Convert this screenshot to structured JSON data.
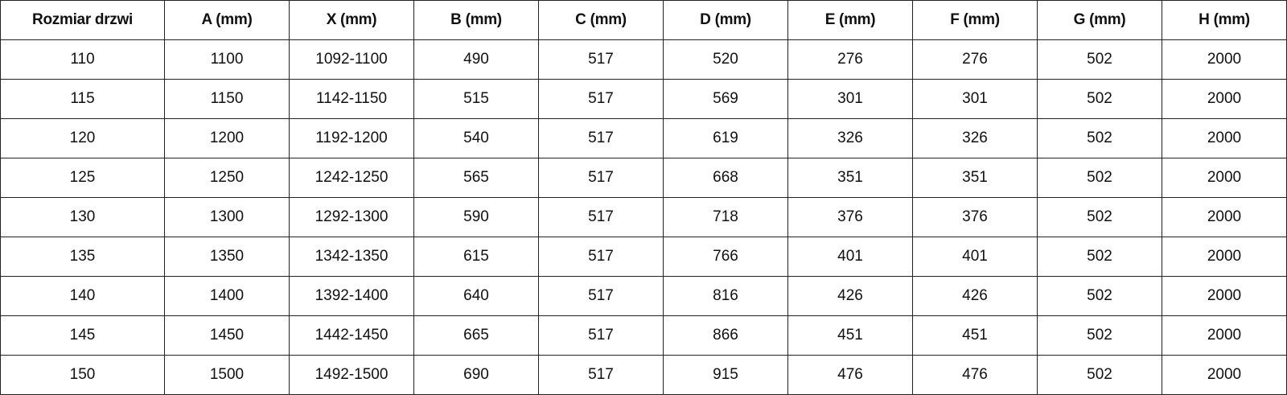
{
  "table": {
    "headers": [
      "Rozmiar drzwi",
      "A (mm)",
      "X (mm)",
      "B (mm)",
      "C (mm)",
      "D (mm)",
      "E (mm)",
      "F (mm)",
      "G (mm)",
      "H (mm)"
    ],
    "rows": [
      [
        "110",
        "1100",
        "1092-1100",
        "490",
        "517",
        "520",
        "276",
        "276",
        "502",
        "2000"
      ],
      [
        "115",
        "1150",
        "1142-1150",
        "515",
        "517",
        "569",
        "301",
        "301",
        "502",
        "2000"
      ],
      [
        "120",
        "1200",
        "1192-1200",
        "540",
        "517",
        "619",
        "326",
        "326",
        "502",
        "2000"
      ],
      [
        "125",
        "1250",
        "1242-1250",
        "565",
        "517",
        "668",
        "351",
        "351",
        "502",
        "2000"
      ],
      [
        "130",
        "1300",
        "1292-1300",
        "590",
        "517",
        "718",
        "376",
        "376",
        "502",
        "2000"
      ],
      [
        "135",
        "1350",
        "1342-1350",
        "615",
        "517",
        "766",
        "401",
        "401",
        "502",
        "2000"
      ],
      [
        "140",
        "1400",
        "1392-1400",
        "640",
        "517",
        "816",
        "426",
        "426",
        "502",
        "2000"
      ],
      [
        "145",
        "1450",
        "1442-1450",
        "665",
        "517",
        "866",
        "451",
        "451",
        "502",
        "2000"
      ],
      [
        "150",
        "1500",
        "1492-1500",
        "690",
        "517",
        "915",
        "476",
        "476",
        "502",
        "2000"
      ]
    ]
  }
}
